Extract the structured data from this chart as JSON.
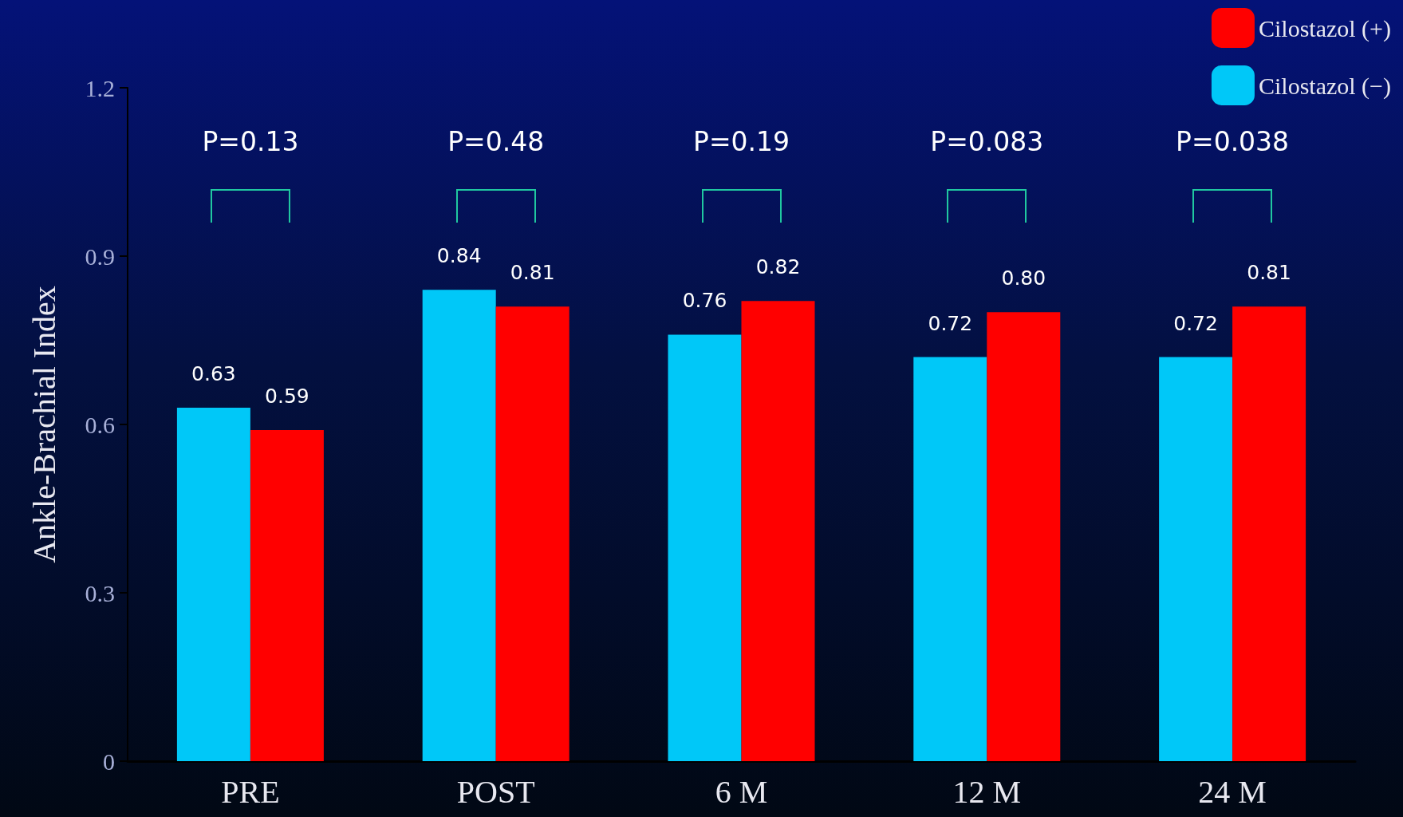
{
  "chart_data": {
    "type": "bar",
    "ylabel": "Ankle-Brachial Index",
    "categories": [
      "PRE",
      "POST",
      "6 M",
      "12 M",
      "24 M"
    ],
    "series": [
      {
        "name": "Cilostazol (−)",
        "color": "#00c8f8",
        "values": [
          0.63,
          0.84,
          0.76,
          0.72,
          0.72
        ],
        "value_labels": [
          "0.63",
          "0.84",
          "0.76",
          "0.72",
          "0.72"
        ]
      },
      {
        "name": "Cilostazol (+)",
        "color": "#ff0000",
        "values": [
          0.59,
          0.81,
          0.82,
          0.8,
          0.81
        ],
        "value_labels": [
          "0.59",
          "0.81",
          "0.82",
          "0.80",
          "0.81"
        ]
      }
    ],
    "ylim": [
      0,
      1.2
    ],
    "yticks": [
      0,
      0.3,
      0.6,
      0.9,
      1.2
    ],
    "grid": false,
    "legend": "top right",
    "annotations": [
      "P=0.13",
      "P=0.48",
      "P=0.19",
      "P=0.083",
      "P=0.038"
    ]
  }
}
